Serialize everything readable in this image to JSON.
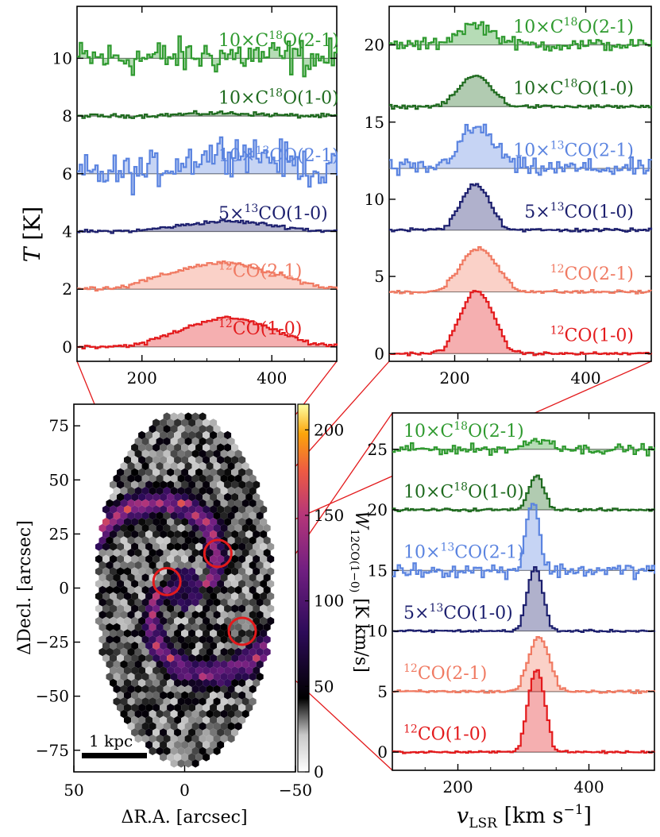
{
  "chart_data": [
    {
      "type": "line",
      "id": "spectra_top_left",
      "xlabel": "",
      "ylabel": "T [K]",
      "xlim": [
        100,
        500
      ],
      "ylim": [
        -0.5,
        11.8
      ],
      "xticks": [
        200,
        400
      ],
      "yticks": [
        0,
        2,
        4,
        6,
        8,
        10
      ],
      "series": [
        {
          "name": "10×C18O(2-1)",
          "label_pre": "10×C",
          "label_sup": "18",
          "label_post": "O(2-1)",
          "color": "#2f9a2f",
          "offset": 10,
          "noise": 0.55,
          "peaks": [
            {
              "center": 330,
              "amp": 0.1,
              "width": 70
            }
          ]
        },
        {
          "name": "10×C18O(1-0)",
          "label_pre": "10×C",
          "label_sup": "18",
          "label_post": "O(1-0)",
          "color": "#1f6b1f",
          "offset": 8,
          "noise": 0.06,
          "peaks": [
            {
              "center": 320,
              "amp": 0.1,
              "width": 60
            }
          ]
        },
        {
          "name": "10×13CO(2-1)",
          "label_pre": "10×",
          "label_sup": "13",
          "label_post": "CO(2-1)",
          "color": "#5b84e0",
          "offset": 6,
          "noise": 0.55,
          "peaks": [
            {
              "center": 340,
              "amp": 0.8,
              "width": 70
            }
          ]
        },
        {
          "name": "5×13CO(1-0)",
          "label_pre": "5×",
          "label_sup": "13",
          "label_post": "CO(1-0)",
          "color": "#1c1f6e",
          "offset": 4,
          "noise": 0.05,
          "peaks": [
            {
              "center": 330,
              "amp": 0.35,
              "width": 70
            }
          ]
        },
        {
          "name": "12CO(2-1)",
          "label_pre": "",
          "label_sup": "12",
          "label_post": "CO(2-1)",
          "color": "#f07a62",
          "offset": 2,
          "noise": 0.06,
          "peaks": [
            {
              "center": 320,
              "amp": 0.9,
              "width": 80
            }
          ]
        },
        {
          "name": "12CO(1-0)",
          "label_pre": "",
          "label_sup": "12",
          "label_post": "CO(1-0)",
          "color": "#e31a1c",
          "offset": 0,
          "noise": 0.05,
          "peaks": [
            {
              "center": 330,
              "amp": 1.0,
              "width": 70
            }
          ]
        }
      ]
    },
    {
      "type": "line",
      "id": "spectra_top_right",
      "xlabel": "",
      "ylabel": "",
      "xlim": [
        100,
        500
      ],
      "ylim": [
        -0.5,
        22.5
      ],
      "xticks": [
        200,
        400
      ],
      "yticks": [
        0,
        5,
        10,
        15,
        20
      ],
      "series": [
        {
          "name": "10×C18O(2-1)",
          "label_pre": "10×C",
          "label_sup": "18",
          "label_post": "O(2-1)",
          "color": "#2f9a2f",
          "offset": 20,
          "noise": 0.35,
          "peaks": [
            {
              "center": 230,
              "amp": 1.3,
              "width": 28
            }
          ]
        },
        {
          "name": "10×C18O(1-0)",
          "label_pre": "10×C",
          "label_sup": "18",
          "label_post": "O(1-0)",
          "color": "#1f6b1f",
          "offset": 16,
          "noise": 0.1,
          "peaks": [
            {
              "center": 230,
              "amp": 2.0,
              "width": 25
            }
          ]
        },
        {
          "name": "10×13CO(2-1)",
          "label_pre": "10×",
          "label_sup": "13",
          "label_post": "CO(2-1)",
          "color": "#5b84e0",
          "offset": 12,
          "noise": 0.5,
          "peaks": [
            {
              "center": 232,
              "amp": 2.6,
              "width": 28
            }
          ]
        },
        {
          "name": "5×13CO(1-0)",
          "label_pre": "5×",
          "label_sup": "13",
          "label_post": "CO(1-0)",
          "color": "#1c1f6e",
          "offset": 8,
          "noise": 0.1,
          "peaks": [
            {
              "center": 230,
              "amp": 3.0,
              "width": 22
            }
          ]
        },
        {
          "name": "12CO(2-1)",
          "label_pre": "",
          "label_sup": "12",
          "label_post": "CO(2-1)",
          "color": "#f07a62",
          "offset": 4,
          "noise": 0.1,
          "peaks": [
            {
              "center": 235,
              "amp": 2.8,
              "width": 28
            }
          ]
        },
        {
          "name": "12CO(1-0)",
          "label_pre": "",
          "label_sup": "12",
          "label_post": "CO(1-0)",
          "color": "#e31a1c",
          "offset": 0,
          "noise": 0.08,
          "peaks": [
            {
              "center": 232,
              "amp": 4.1,
              "width": 25
            }
          ]
        }
      ]
    },
    {
      "type": "line",
      "id": "spectra_bottom_right",
      "xlabel": "v_LSR [km s^-1]",
      "ylabel": "",
      "xlim": [
        100,
        500
      ],
      "ylim": [
        -1.5,
        28
      ],
      "xticks": [
        200,
        400
      ],
      "yticks": [
        0,
        5,
        10,
        15,
        20,
        25
      ],
      "series": [
        {
          "name": "10×C18O(2-1)",
          "label_pre": "10×C",
          "label_sup": "18",
          "label_post": "O(2-1)",
          "color": "#2f9a2f",
          "offset": 25,
          "noise": 0.35,
          "peaks": [
            {
              "center": 325,
              "amp": 0.8,
              "width": 20
            }
          ]
        },
        {
          "name": "10×C18O(1-0)",
          "label_pre": "10×C",
          "label_sup": "18",
          "label_post": "O(1-0)",
          "color": "#1f6b1f",
          "offset": 20,
          "noise": 0.1,
          "peaks": [
            {
              "center": 318,
              "amp": 2.8,
              "width": 12
            }
          ]
        },
        {
          "name": "10×13CO(2-1)",
          "label_pre": "10×",
          "label_sup": "13",
          "label_post": "CO(2-1)",
          "color": "#5b84e0",
          "offset": 15,
          "noise": 0.5,
          "peaks": [
            {
              "center": 312,
              "amp": 5.8,
              "width": 10
            }
          ]
        },
        {
          "name": "5×13CO(1-0)",
          "label_pre": "5×",
          "label_sup": "13",
          "label_post": "CO(1-0)",
          "color": "#1c1f6e",
          "offset": 10,
          "noise": 0.08,
          "peaks": [
            {
              "center": 316,
              "amp": 5.2,
              "width": 12
            }
          ]
        },
        {
          "name": "12CO(2-1)",
          "label_pre": "",
          "label_sup": "12",
          "label_post": "CO(2-1)",
          "color": "#f07a62",
          "offset": 5,
          "noise": 0.1,
          "peaks": [
            {
              "center": 322,
              "amp": 4.5,
              "width": 16
            }
          ]
        },
        {
          "name": "12CO(1-0)",
          "label_pre": "",
          "label_sup": "12",
          "label_post": "CO(1-0)",
          "color": "#e31a1c",
          "offset": 0,
          "noise": 0.08,
          "peaks": [
            {
              "center": 318,
              "amp": 6.8,
              "width": 13
            }
          ]
        }
      ]
    },
    {
      "type": "heatmap",
      "id": "co_intensity_map",
      "xlabel": "ΔR.A. [arcsec]",
      "ylabel": "ΔDecl. [arcsec]",
      "xlim": [
        50,
        -50
      ],
      "ylim": [
        -85,
        85
      ],
      "xticks": [
        50,
        0,
        -50
      ],
      "yticks": [
        75,
        50,
        25,
        0,
        -25,
        -50,
        -75
      ],
      "colorbar": {
        "label": "W12CO(1−0) [K km/s]",
        "label_main": "W",
        "label_sub": "12CO(1−0)",
        "label_units": " [K km/s]",
        "range": [
          0,
          215
        ],
        "ticks": [
          0,
          50,
          100,
          150,
          200
        ],
        "colormap": "inferno"
      },
      "scalebar_label": "1 kpc",
      "regions": [
        {
          "name": "center",
          "ra": 8,
          "dec": 3
        },
        {
          "name": "arm-north",
          "ra": -15,
          "dec": 16
        },
        {
          "name": "arm-south",
          "ra": -26,
          "dec": -20
        }
      ]
    }
  ],
  "labels": {
    "ylabel_main": "T",
    "ylabel_unit": " [K]",
    "xlabel_main": "v",
    "xlabel_sub": "LSR",
    "xlabel_units": " [km s",
    "xlabel_exp": "−1",
    "xlabel_close": "]"
  }
}
